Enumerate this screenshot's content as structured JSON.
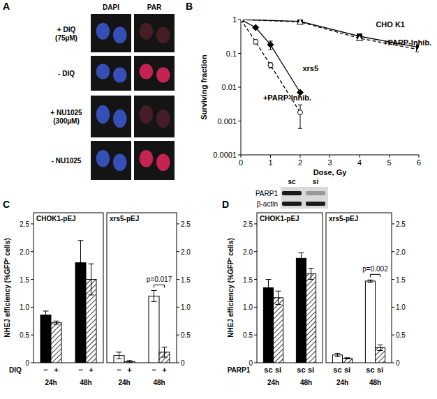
{
  "panel_labels": [
    "A",
    "B",
    "C",
    "D"
  ],
  "panel_a": {
    "columns": [
      "DAPI",
      "PAR"
    ],
    "rows": [
      [
        "+ DIQ",
        "(75µM)"
      ],
      [
        "- DIQ"
      ],
      [
        "+ NU1025",
        "(300µM)"
      ],
      [
        "- NU1025"
      ]
    ]
  },
  "blot": {
    "lanes": [
      "sc",
      "si"
    ],
    "rows": [
      "PARP1",
      "β-actin"
    ]
  },
  "chart_data": [
    {
      "type": "line",
      "xlabel": "Dose, Gy",
      "ylabel": "Surviving fraction",
      "log": "y",
      "xlim": [
        0,
        6
      ],
      "xticks": [
        0,
        1,
        2,
        3,
        4,
        5,
        6
      ],
      "ylim": [
        0.0001,
        1
      ],
      "yticks": [
        0.0001,
        0.001,
        0.01,
        0.1,
        1
      ],
      "series": [
        {
          "name": "CHO K1",
          "x": [
            0,
            2,
            4,
            6
          ],
          "values": [
            1,
            0.88,
            0.32,
            0.15
          ],
          "errors": [
            null,
            0.08,
            0.04,
            null
          ],
          "color": "#000000",
          "marker": "square",
          "line_style": "solid"
        },
        {
          "name": "+PARP-Inhib.",
          "x": [
            0,
            2,
            4,
            6
          ],
          "values": [
            1,
            0.85,
            0.28,
            0.13
          ],
          "errors": [
            null,
            null,
            null,
            null
          ],
          "color": "#ffffff",
          "marker": "triangle",
          "line_style": "dashed"
        },
        {
          "name": "xrs5",
          "x": [
            0,
            0.5,
            1,
            2
          ],
          "values": [
            1,
            0.58,
            0.18,
            0.007
          ],
          "errors": [
            null,
            0.05,
            0.05,
            null
          ],
          "color": "#000000",
          "marker": "diamond",
          "line_style": "solid"
        },
        {
          "name": "+PARP-Inhib.",
          "x": [
            0,
            0.5,
            1,
            2
          ],
          "values": [
            1,
            0.22,
            0.045,
            0.0018
          ],
          "errors": [
            null,
            0.03,
            0.008,
            0.0012
          ],
          "color": "#ffffff",
          "marker": "circle",
          "line_style": "dashed"
        }
      ]
    },
    {
      "type": "bar",
      "title": "CHOK1-pEJ",
      "ylabel": "NHEJ efficiency (%GFP⁺ cells)",
      "xlabel": "DIQ",
      "categories": [
        "24h",
        "48h"
      ],
      "ylim": [
        0,
        2.7
      ],
      "yticks": [
        0,
        0.5,
        {
          "value": 1,
          "label": "1.0"
        },
        1.5,
        {
          "value": 2,
          "label": "2.0"
        },
        2.5
      ],
      "series": [
        {
          "name": "−",
          "color": "#000000",
          "values": [
            0.86,
            1.8
          ],
          "errors": [
            0.07,
            0.4
          ]
        },
        {
          "name": "+",
          "color": "#ffffff",
          "line_style": "hatched",
          "values": [
            0.72,
            1.5
          ],
          "errors": [
            0.03,
            0.28
          ]
        }
      ]
    },
    {
      "type": "bar",
      "title": "xrs5-pEJ",
      "categories": [
        "24h",
        "48h"
      ],
      "ylim": [
        0,
        2.7
      ],
      "yticks": [
        0,
        0.5,
        {
          "value": 1,
          "label": "1.0"
        },
        1.5,
        {
          "value": 2,
          "label": "2.0"
        },
        2.5
      ],
      "annotation": "p=0.017",
      "series": [
        {
          "name": "−",
          "color": "#ffffff",
          "values": [
            0.13,
            1.2
          ],
          "errors": [
            0.06,
            0.1
          ]
        },
        {
          "name": "+",
          "color": "#ffffff",
          "line_style": "hatched",
          "values": [
            0.02,
            0.19
          ],
          "errors": [
            0.02,
            0.09
          ]
        }
      ]
    },
    {
      "type": "bar",
      "title": "CHOK1-pEJ",
      "ylabel": "NHEJ efficiency (%GFP⁺ cells)",
      "xlabel": "PARP1",
      "categories": [
        "24h",
        "48h"
      ],
      "ylim": [
        0,
        2.7
      ],
      "yticks": [
        0,
        0.5,
        {
          "value": 1,
          "label": "1.0"
        },
        1.5,
        {
          "value": 2,
          "label": "2.0"
        },
        2.5
      ],
      "series": [
        {
          "name": "sc",
          "color": "#000000",
          "values": [
            1.35,
            1.88
          ],
          "errors": [
            0.15,
            0.1
          ]
        },
        {
          "name": "si",
          "color": "#ffffff",
          "line_style": "hatched",
          "values": [
            1.17,
            1.6
          ],
          "errors": [
            0.12,
            0.1
          ]
        }
      ]
    },
    {
      "type": "bar",
      "title": "xrs5-pEJ",
      "categories": [
        "24h",
        "48h"
      ],
      "ylim": [
        0,
        2.7
      ],
      "yticks": [
        0,
        0.5,
        {
          "value": 1,
          "label": "1.0"
        },
        1.5,
        {
          "value": 2,
          "label": "2.0"
        },
        2.5
      ],
      "annotation": "p=0.002",
      "series": [
        {
          "name": "sc",
          "color": "#ffffff",
          "values": [
            0.14,
            1.47
          ],
          "errors": [
            0.03,
            0.02
          ]
        },
        {
          "name": "si",
          "color": "#ffffff",
          "line_style": "hatched",
          "values": [
            0.08,
            0.27
          ],
          "errors": [
            0.01,
            0.05
          ]
        }
      ]
    }
  ]
}
